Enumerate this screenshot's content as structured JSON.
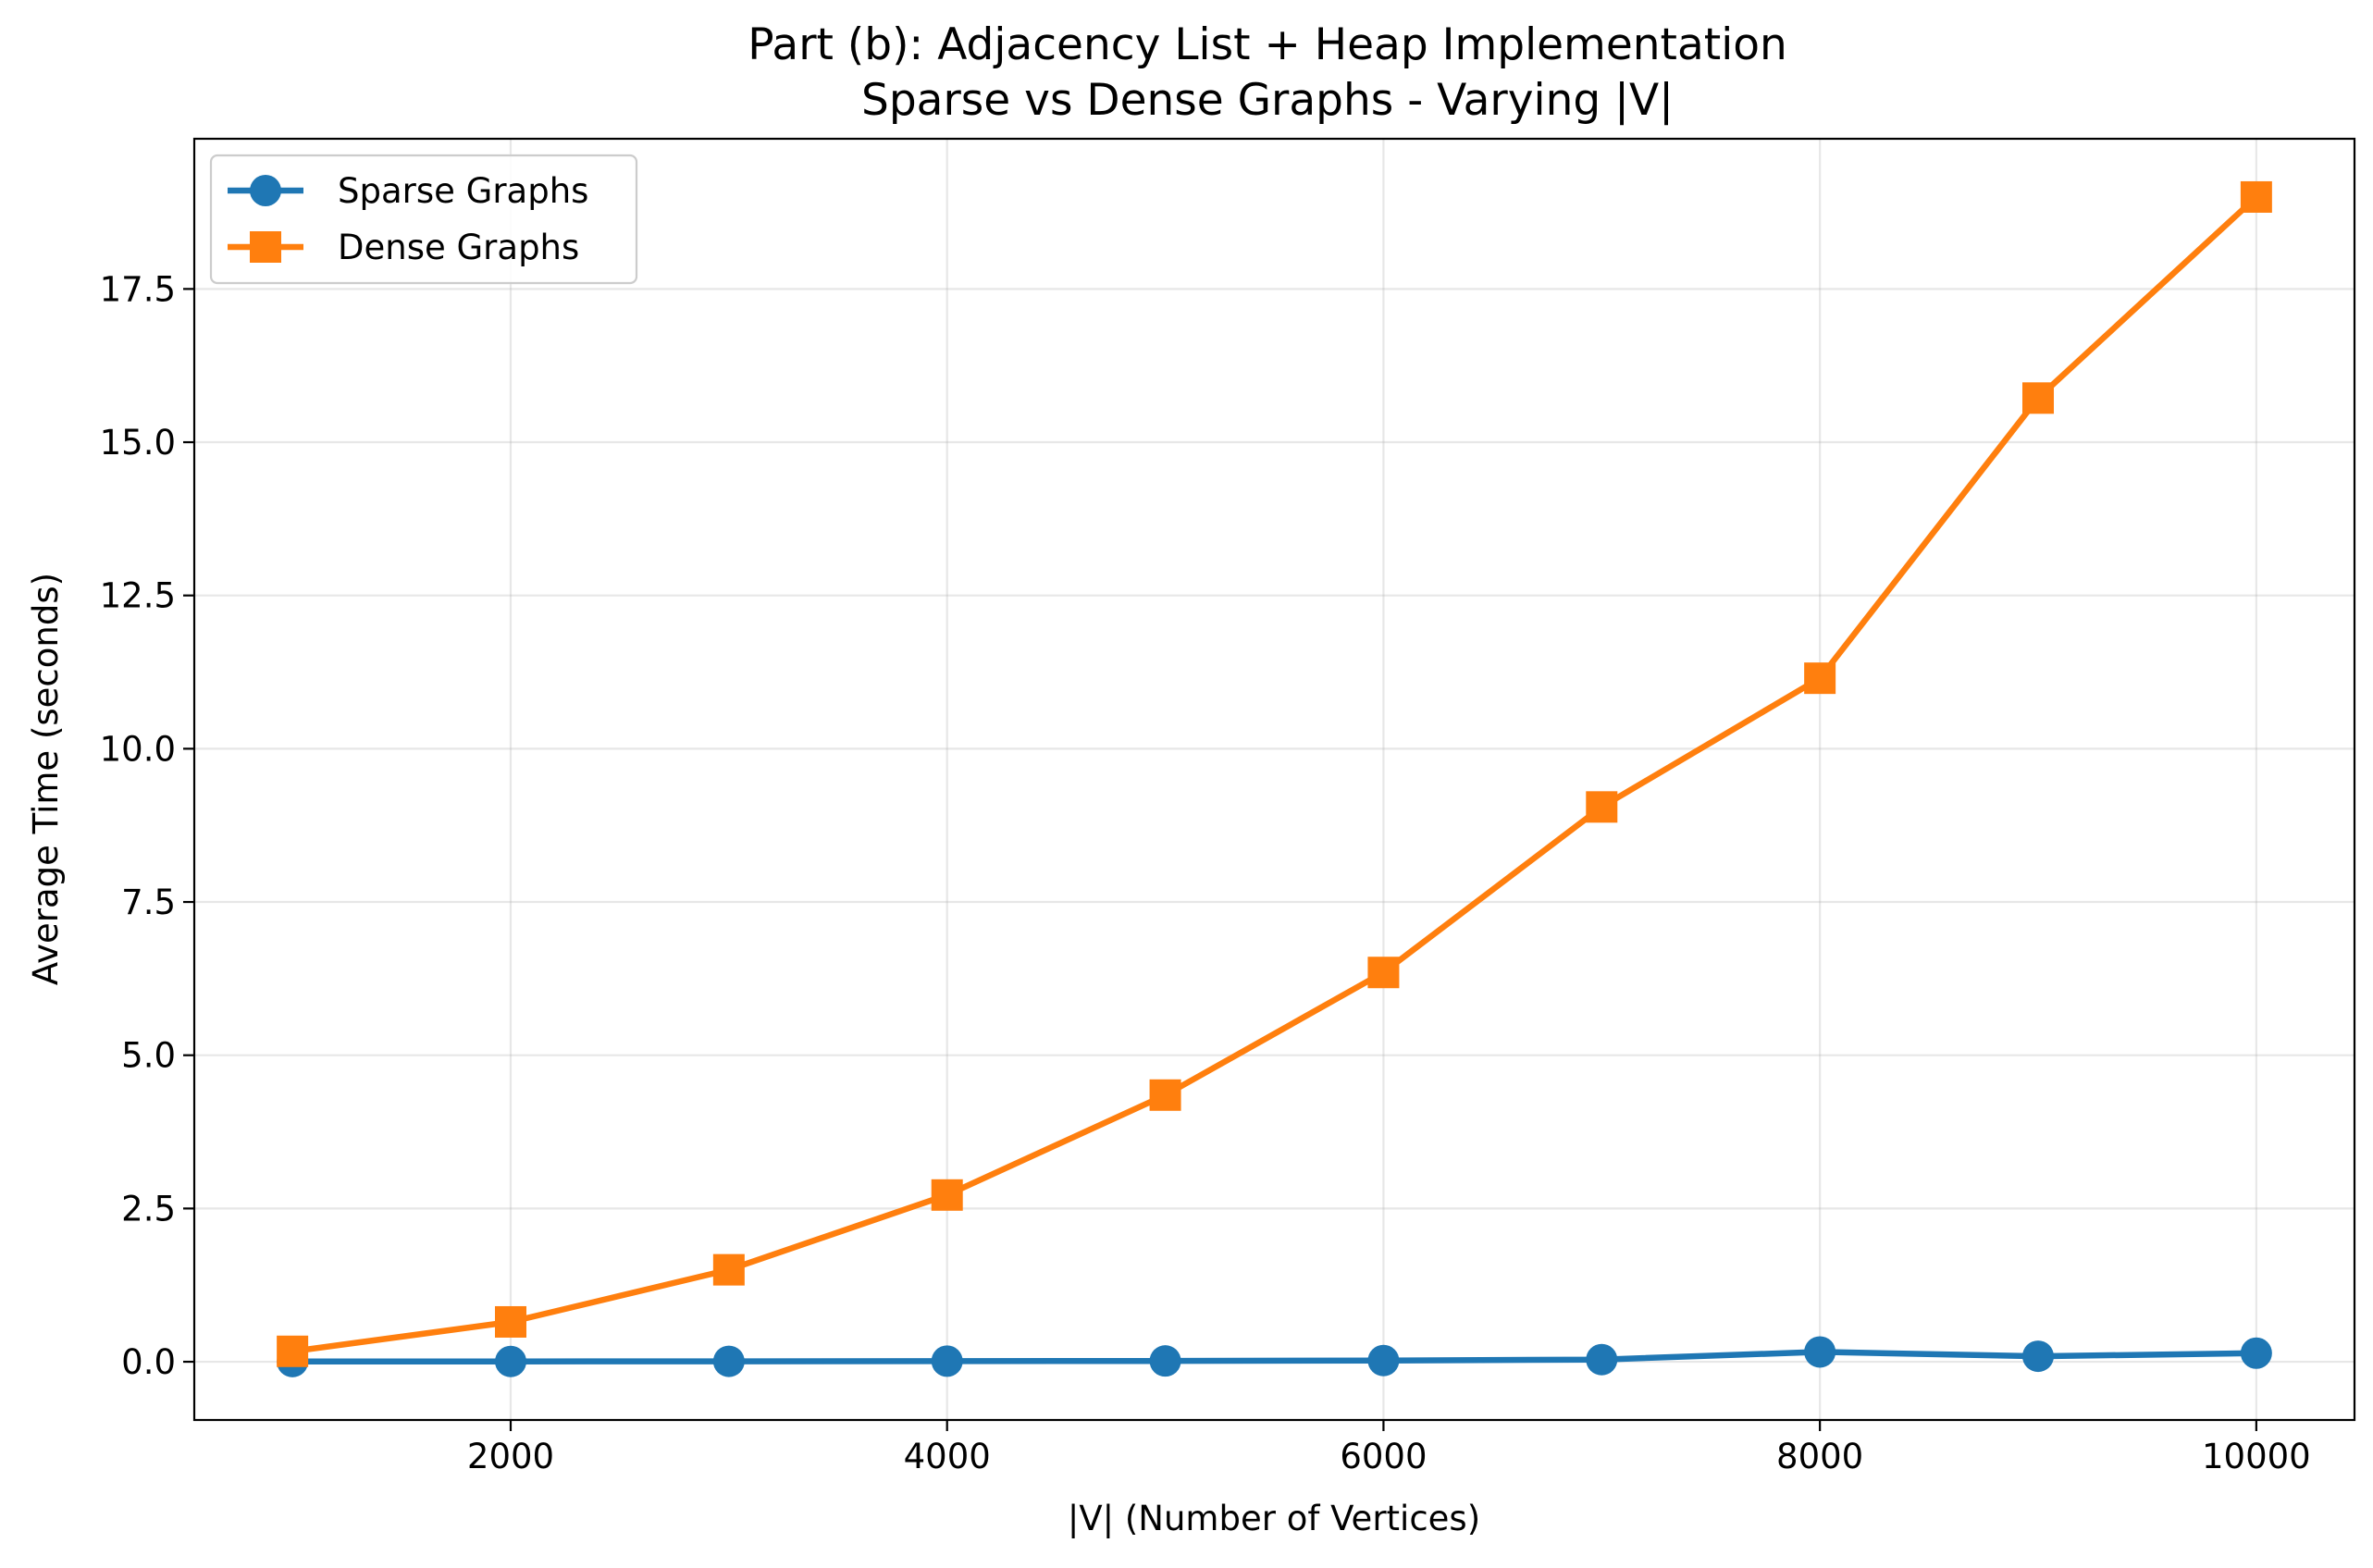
{
  "chart_data": {
    "type": "line",
    "title_line1": "Part (b): Adjacency List + Heap Implementation",
    "title_line2": "Sparse vs Dense Graphs - Varying |V|",
    "xlabel": "|V| (Number of Vertices)",
    "ylabel": "Average Time (seconds)",
    "x": [
      1000,
      2000,
      3000,
      4000,
      5000,
      6000,
      7000,
      8000,
      9000,
      10000
    ],
    "xlim": [
      550,
      10450
    ],
    "ylim": [
      -0.95,
      19.95
    ],
    "x_ticks": [
      2000,
      4000,
      6000,
      8000,
      10000
    ],
    "x_tick_labels": [
      "2000",
      "4000",
      "6000",
      "8000",
      "10000"
    ],
    "y_ticks": [
      0,
      2.5,
      5,
      7.5,
      10,
      12.5,
      15,
      17.5
    ],
    "y_tick_labels": [
      "0.0",
      "2.5",
      "5.0",
      "7.5",
      "10.0",
      "12.5",
      "15.0",
      "17.5"
    ],
    "grid": true,
    "legend_position": "upper-left",
    "series": [
      {
        "name": "Sparse Graphs",
        "color": "#1f77b4",
        "marker": "circle",
        "values": [
          0.003,
          0.005,
          0.007,
          0.01,
          0.013,
          0.02,
          0.035,
          0.16,
          0.09,
          0.14
        ]
      },
      {
        "name": "Dense Graphs",
        "color": "#ff7f0e",
        "marker": "square",
        "values": [
          0.17,
          0.65,
          1.5,
          2.72,
          4.35,
          6.35,
          9.05,
          11.15,
          15.72,
          19.0
        ]
      }
    ]
  }
}
